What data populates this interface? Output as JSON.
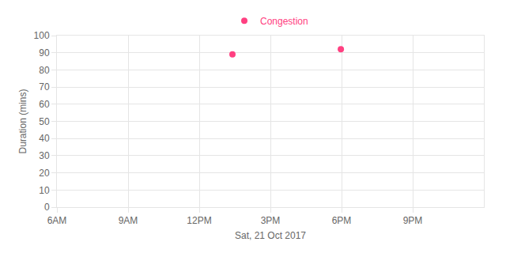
{
  "chart_data": {
    "type": "scatter",
    "x_label": "Sat, 21 Oct 2017",
    "y_label": "Duration (mins)",
    "series": [
      {
        "name": "Congestion",
        "color": "#ff4081",
        "marker": "circle",
        "x": [
          13.4,
          17.97
        ],
        "values": [
          89,
          92
        ]
      }
    ],
    "xlim": [
      6,
      24
    ],
    "xticks": [
      {
        "value": 6,
        "label": "6AM"
      },
      {
        "value": 9,
        "label": "9AM"
      },
      {
        "value": 12,
        "label": "12PM"
      },
      {
        "value": 15,
        "label": "3PM"
      },
      {
        "value": 18,
        "label": "6PM"
      },
      {
        "value": 21,
        "label": "9PM"
      }
    ],
    "ylim": [
      0,
      100
    ],
    "yticks": [
      0,
      10,
      20,
      30,
      40,
      50,
      60,
      70,
      80,
      90,
      100
    ],
    "grid": true,
    "legend": "top"
  }
}
